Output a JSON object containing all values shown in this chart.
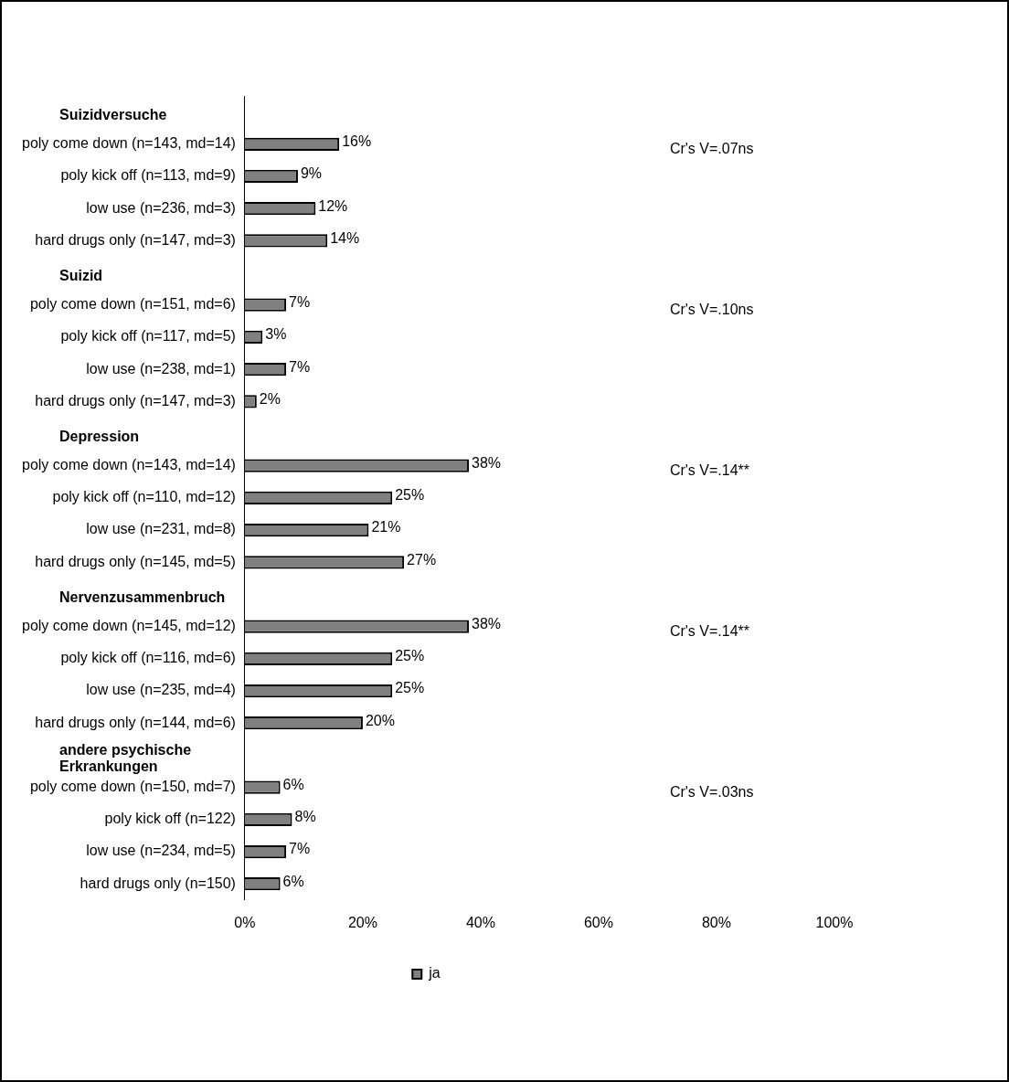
{
  "chart_data": {
    "type": "bar",
    "orientation": "horizontal",
    "categories": [
      "poly come down (n=143, md=14)",
      "poly kick off (n=113, md=9)",
      "low use (n=236, md=3)",
      "hard drugs only (n=147, md=3)",
      "poly come down (n=151, md=6)",
      "poly kick off (n=117, md=5)",
      "low use (n=238, md=1)",
      "hard drugs only (n=147, md=3)",
      "poly come down (n=143, md=14)",
      "poly kick off (n=110, md=12)",
      "low use (n=231, md=8)",
      "hard drugs only (n=145, md=5)",
      "poly come down (n=145, md=12)",
      "poly kick off (n=116, md=6)",
      "low use (n=235, md=4)",
      "hard drugs only (n=144, md=6)",
      "poly come down (n=150, md=7)",
      "poly kick off (n=122)",
      "low use (n=234, md=5)",
      "hard drugs only (n=150)"
    ],
    "series": [
      {
        "name": "ja",
        "color": "#808080",
        "values": [
          16,
          9,
          12,
          14,
          7,
          3,
          7,
          2,
          38,
          25,
          21,
          27,
          38,
          25,
          25,
          20,
          6,
          8,
          7,
          6
        ],
        "value_labels": [
          "16%",
          "9%",
          "12%",
          "14%",
          "7%",
          "3%",
          "7%",
          "2%",
          "38%",
          "25%",
          "21%",
          "27%",
          "38%",
          "25%",
          "25%",
          "20%",
          "6%",
          "8%",
          "7%",
          "6%"
        ]
      }
    ],
    "xlim": [
      0,
      100
    ],
    "xticks": [
      {
        "value": 0,
        "label": "0%"
      },
      {
        "value": 20,
        "label": "20%"
      },
      {
        "value": 40,
        "label": "40%"
      },
      {
        "value": 60,
        "label": "60%"
      },
      {
        "value": 80,
        "label": "80%"
      },
      {
        "value": 100,
        "label": "100%"
      }
    ],
    "annotations": [
      "Suizidversuche",
      "Cr's V=.07ns",
      "Suizid",
      "Cr's V=.10ns",
      "Depression",
      "Cr's V=.14**",
      "Nervenzusammenbruch",
      "Cr's V=.14**",
      "andere psychische Erkrankungen",
      "Cr's V=.03ns"
    ],
    "grid": false,
    "legend": "bottom"
  }
}
